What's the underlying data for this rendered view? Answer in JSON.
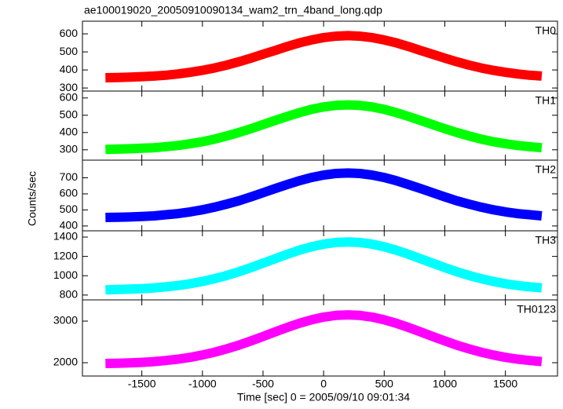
{
  "chart_data": {
    "type": "line",
    "title": "ae100019020_20050910090134_wam2_trn_4band_long.qdp",
    "xlabel": "Time [sec] 0 = 2005/09/10 09:01:34",
    "ylabel": "Counts/sec",
    "xlim": [
      -1990,
      1930
    ],
    "xticks": [
      -1500,
      -1000,
      -500,
      0,
      500,
      1000,
      1500
    ],
    "x": [
      -1800,
      -1700,
      -1600,
      -1500,
      -1400,
      -1300,
      -1200,
      -1100,
      -1000,
      -900,
      -800,
      -700,
      -600,
      -500,
      -400,
      -300,
      -200,
      -100,
      0,
      100,
      200,
      300,
      400,
      500,
      600,
      700,
      800,
      900,
      1000,
      1100,
      1200,
      1300,
      1400,
      1500,
      1600,
      1700,
      1800
    ],
    "series": [
      {
        "name": "TH0",
        "color": "#ff0000",
        "ylim": [
          283,
          670
        ],
        "yticks": [
          300,
          400,
          500,
          600
        ],
        "values": [
          357,
          358,
          360,
          363,
          366,
          371,
          378,
          387,
          398,
          411,
          427,
          445,
          465,
          487,
          508,
          530,
          550,
          566,
          579,
          587,
          590,
          587,
          579,
          566,
          550,
          530,
          508,
          487,
          465,
          445,
          427,
          411,
          398,
          387,
          378,
          371,
          366
        ]
      },
      {
        "name": "TH1",
        "color": "#00ff00",
        "ylim": [
          240,
          640
        ],
        "yticks": [
          300,
          400,
          500,
          600
        ],
        "values": [
          302,
          304,
          306,
          309,
          312,
          318,
          325,
          335,
          347,
          362,
          380,
          400,
          422,
          446,
          470,
          493,
          515,
          534,
          548,
          557,
          560,
          557,
          548,
          534,
          515,
          493,
          470,
          446,
          422,
          400,
          380,
          362,
          347,
          335,
          325,
          318,
          312
        ]
      },
      {
        "name": "TH2",
        "color": "#0000ff",
        "ylim": [
          370,
          810
        ],
        "yticks": [
          400,
          500,
          600,
          700
        ],
        "values": [
          453,
          454,
          456,
          459,
          463,
          470,
          477,
          488,
          501,
          517,
          536,
          557,
          581,
          607,
          633,
          658,
          682,
          702,
          717,
          727,
          730,
          727,
          717,
          702,
          682,
          658,
          633,
          607,
          581,
          557,
          536,
          517,
          501,
          488,
          477,
          470,
          463
        ]
      },
      {
        "name": "TH3",
        "color": "#00ffff",
        "ylim": [
          750,
          1465
        ],
        "yticks": [
          800,
          1000,
          1200,
          1400
        ],
        "values": [
          854,
          857,
          861,
          866,
          874,
          885,
          899,
          917,
          941,
          969,
          1003,
          1041,
          1084,
          1130,
          1176,
          1222,
          1264,
          1299,
          1327,
          1344,
          1350,
          1344,
          1327,
          1299,
          1264,
          1222,
          1176,
          1130,
          1084,
          1041,
          1003,
          969,
          941,
          917,
          899,
          885,
          874
        ]
      },
      {
        "name": "TH0123",
        "color": "#ff00ff",
        "ylim": [
          1680,
          3510
        ],
        "yticks": [
          2000,
          3000
        ],
        "values": [
          1981,
          1987,
          1996,
          2009,
          2027,
          2053,
          2086,
          2129,
          2185,
          2252,
          2332,
          2422,
          2523,
          2631,
          2741,
          2848,
          2947,
          3031,
          3096,
          3136,
          3150,
          3136,
          3096,
          3031,
          2947,
          2848,
          2741,
          2631,
          2523,
          2422,
          2332,
          2252,
          2185,
          2129,
          2086,
          2053,
          2027
        ]
      }
    ]
  }
}
